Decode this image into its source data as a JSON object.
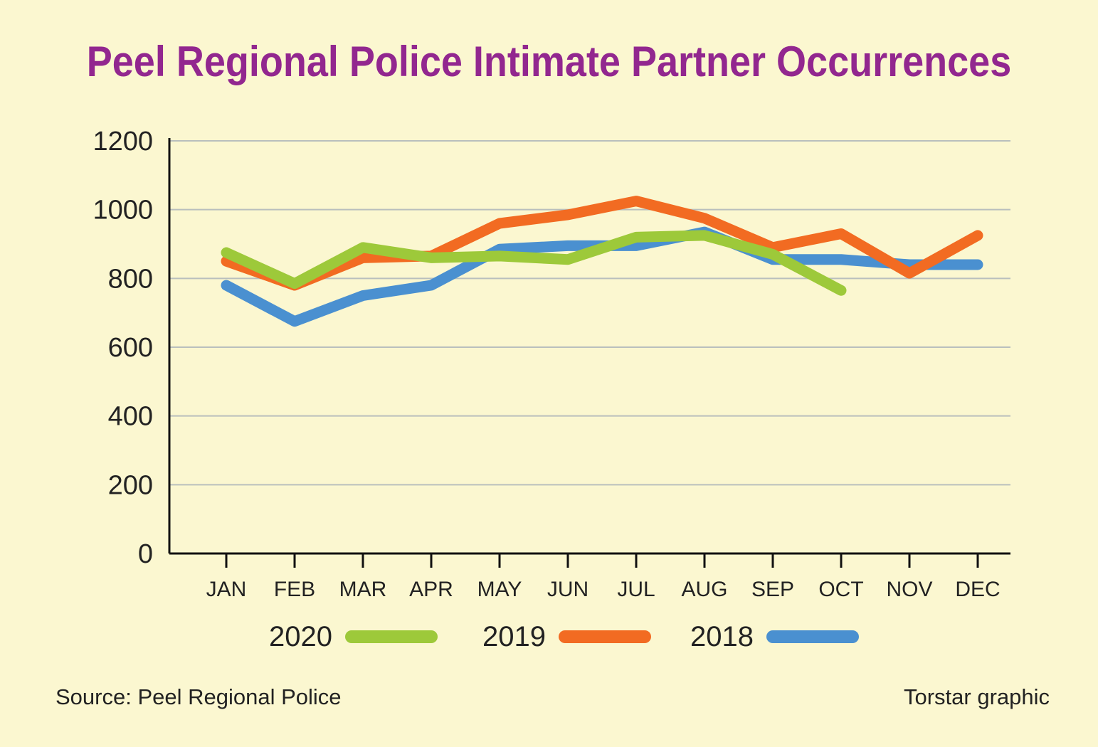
{
  "title": "Peel Regional Police Intimate Partner Occurrences",
  "footer": {
    "source": "Source: Peel Regional Police",
    "credit": "Torstar graphic"
  },
  "chart_data": {
    "type": "line",
    "categories": [
      "JAN",
      "FEB",
      "MAR",
      "APR",
      "MAY",
      "JUN",
      "JUL",
      "AUG",
      "SEP",
      "OCT",
      "NOV",
      "DEC"
    ],
    "ylim": [
      0,
      1200
    ],
    "yticks": [
      0,
      200,
      400,
      600,
      800,
      1000,
      1200
    ],
    "grid": true,
    "legend_position": "bottom",
    "series": [
      {
        "name": "2018",
        "color": "#4a90d0",
        "values": [
          780,
          675,
          750,
          780,
          885,
          895,
          895,
          935,
          855,
          855,
          840,
          840
        ]
      },
      {
        "name": "2019",
        "color": "#f26b22",
        "values": [
          850,
          780,
          860,
          865,
          960,
          985,
          1025,
          975,
          890,
          930,
          815,
          925
        ]
      },
      {
        "name": "2020",
        "color": "#9dc93a",
        "values": [
          875,
          785,
          890,
          860,
          865,
          855,
          920,
          925,
          870,
          765,
          null,
          null
        ]
      }
    ],
    "legend_order": [
      "2020",
      "2019",
      "2018"
    ]
  }
}
